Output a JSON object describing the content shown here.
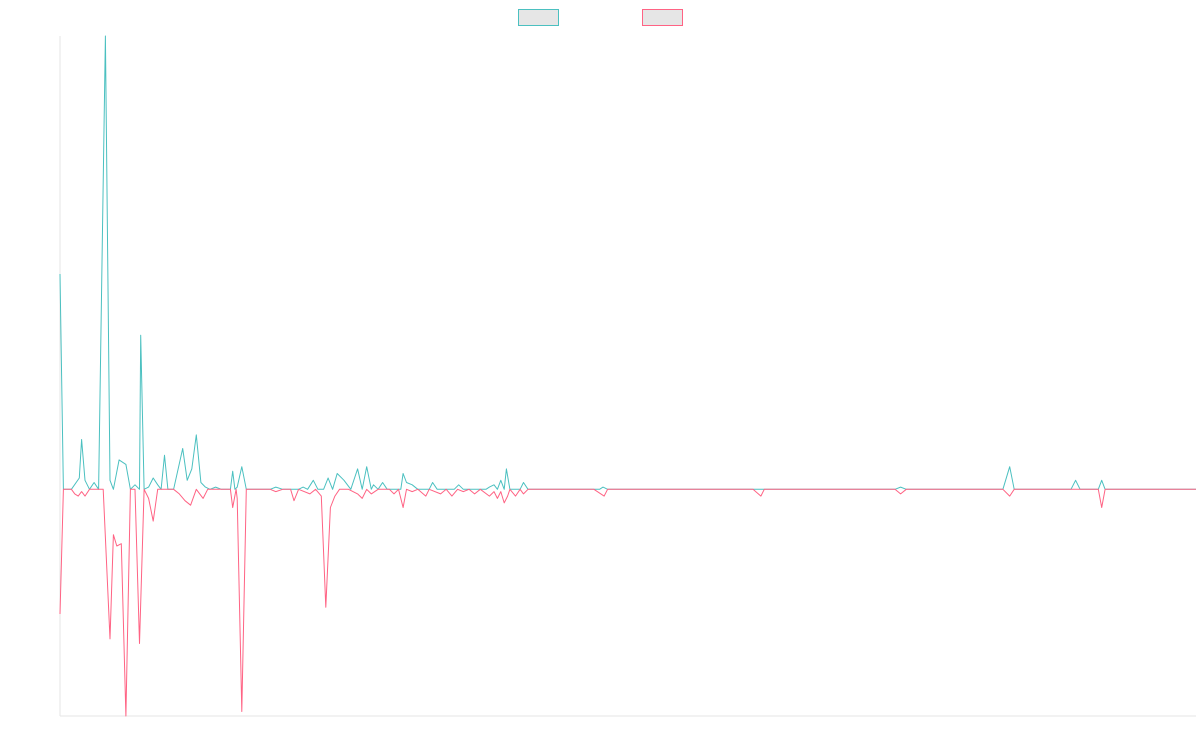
{
  "chart_data": {
    "type": "line",
    "title": "",
    "xlabel": "",
    "ylabel": "",
    "grid": false,
    "legend": "top-center",
    "x_range": [
      0,
      1000
    ],
    "ylim": [
      -100,
      200
    ],
    "series": [
      {
        "color": "#4bc0c0",
        "fill": "#e6e6e6",
        "points": [
          [
            0,
            95
          ],
          [
            3,
            0
          ],
          [
            10,
            0
          ],
          [
            17,
            5
          ],
          [
            19,
            22
          ],
          [
            22,
            4
          ],
          [
            26,
            0
          ],
          [
            30,
            3
          ],
          [
            34,
            0
          ],
          [
            40,
            200
          ],
          [
            44,
            4
          ],
          [
            47,
            0
          ],
          [
            52,
            13
          ],
          [
            58,
            11
          ],
          [
            62,
            0
          ],
          [
            66,
            2
          ],
          [
            70,
            0
          ],
          [
            71,
            68
          ],
          [
            74,
            0
          ],
          [
            78,
            1
          ],
          [
            82,
            5
          ],
          [
            86,
            2
          ],
          [
            89,
            0
          ],
          [
            92,
            15
          ],
          [
            95,
            0
          ],
          [
            100,
            0
          ],
          [
            108,
            18
          ],
          [
            112,
            4
          ],
          [
            116,
            9
          ],
          [
            120,
            24
          ],
          [
            124,
            3
          ],
          [
            128,
            1
          ],
          [
            132,
            0
          ],
          [
            137,
            1
          ],
          [
            142,
            0
          ],
          [
            150,
            0
          ],
          [
            152,
            8
          ],
          [
            154,
            0
          ],
          [
            156,
            1
          ],
          [
            160,
            10
          ],
          [
            164,
            0
          ],
          [
            175,
            0
          ],
          [
            185,
            0
          ],
          [
            190,
            1
          ],
          [
            196,
            0
          ],
          [
            203,
            0
          ],
          [
            210,
            0
          ],
          [
            214,
            1
          ],
          [
            218,
            0
          ],
          [
            223,
            4
          ],
          [
            227,
            0
          ],
          [
            232,
            0
          ],
          [
            236,
            5
          ],
          [
            240,
            0
          ],
          [
            244,
            7
          ],
          [
            250,
            4
          ],
          [
            256,
            0
          ],
          [
            262,
            9
          ],
          [
            266,
            0
          ],
          [
            270,
            10
          ],
          [
            274,
            0
          ],
          [
            276,
            2
          ],
          [
            280,
            0
          ],
          [
            284,
            3
          ],
          [
            288,
            0
          ],
          [
            300,
            0
          ],
          [
            302,
            7
          ],
          [
            305,
            3
          ],
          [
            310,
            2
          ],
          [
            315,
            0
          ],
          [
            325,
            0
          ],
          [
            328,
            3
          ],
          [
            332,
            0
          ],
          [
            340,
            0
          ],
          [
            347,
            0
          ],
          [
            351,
            2
          ],
          [
            355,
            0
          ],
          [
            368,
            0
          ],
          [
            375,
            0
          ],
          [
            378,
            1
          ],
          [
            382,
            2
          ],
          [
            385,
            0
          ],
          [
            388,
            4
          ],
          [
            391,
            0
          ],
          [
            393,
            9
          ],
          [
            396,
            0
          ],
          [
            405,
            0
          ],
          [
            408,
            3
          ],
          [
            412,
            0
          ],
          [
            470,
            0
          ],
          [
            475,
            0
          ],
          [
            478,
            1
          ],
          [
            482,
            0
          ],
          [
            490,
            0
          ],
          [
            500,
            0
          ],
          [
            550,
            0
          ],
          [
            560,
            0
          ],
          [
            600,
            0
          ],
          [
            630,
            0
          ],
          [
            650,
            0
          ],
          [
            700,
            0
          ],
          [
            735,
            0
          ],
          [
            740,
            1
          ],
          [
            745,
            0
          ],
          [
            795,
            0
          ],
          [
            830,
            0
          ],
          [
            836,
            10
          ],
          [
            840,
            0
          ],
          [
            890,
            0
          ],
          [
            894,
            4
          ],
          [
            898,
            0
          ],
          [
            914,
            0
          ],
          [
            917,
            4
          ],
          [
            920,
            0
          ],
          [
            1000,
            0
          ],
          [
            1021,
            0
          ],
          [
            1024,
            10
          ],
          [
            1027,
            0
          ],
          [
            1040,
            0
          ]
        ]
      },
      {
        "color": "#ff6384",
        "fill": "#e6e6e6",
        "points": [
          [
            0,
            -55
          ],
          [
            3,
            0
          ],
          [
            10,
            0
          ],
          [
            13,
            -2
          ],
          [
            16,
            -3
          ],
          [
            19,
            -1
          ],
          [
            22,
            -3
          ],
          [
            26,
            0
          ],
          [
            34,
            0
          ],
          [
            38,
            0
          ],
          [
            44,
            -66
          ],
          [
            47,
            -20
          ],
          [
            50,
            -25
          ],
          [
            54,
            -24
          ],
          [
            58,
            -100
          ],
          [
            62,
            0
          ],
          [
            66,
            0
          ],
          [
            70,
            -68
          ],
          [
            74,
            0
          ],
          [
            78,
            -4
          ],
          [
            82,
            -14
          ],
          [
            86,
            0
          ],
          [
            92,
            0
          ],
          [
            98,
            0
          ],
          [
            100,
            0
          ],
          [
            105,
            -2
          ],
          [
            110,
            -5
          ],
          [
            115,
            -7
          ],
          [
            120,
            0
          ],
          [
            126,
            -4
          ],
          [
            130,
            0
          ],
          [
            140,
            0
          ],
          [
            150,
            0
          ],
          [
            152,
            -8
          ],
          [
            155,
            0
          ],
          [
            156,
            -4
          ],
          [
            160,
            -98
          ],
          [
            164,
            0
          ],
          [
            175,
            0
          ],
          [
            185,
            0
          ],
          [
            190,
            -1
          ],
          [
            196,
            0
          ],
          [
            203,
            0
          ],
          [
            206,
            -5
          ],
          [
            210,
            0
          ],
          [
            220,
            -2
          ],
          [
            225,
            0
          ],
          [
            230,
            -3
          ],
          [
            234,
            -52
          ],
          [
            238,
            -8
          ],
          [
            242,
            -3
          ],
          [
            246,
            0
          ],
          [
            254,
            0
          ],
          [
            262,
            -2
          ],
          [
            266,
            -4
          ],
          [
            270,
            0
          ],
          [
            274,
            -2
          ],
          [
            280,
            0
          ],
          [
            290,
            0
          ],
          [
            294,
            -2
          ],
          [
            298,
            0
          ],
          [
            302,
            -8
          ],
          [
            305,
            0
          ],
          [
            310,
            -1
          ],
          [
            315,
            0
          ],
          [
            322,
            -3
          ],
          [
            325,
            0
          ],
          [
            335,
            -2
          ],
          [
            340,
            0
          ],
          [
            345,
            -3
          ],
          [
            350,
            0
          ],
          [
            355,
            -1
          ],
          [
            360,
            0
          ],
          [
            365,
            -2
          ],
          [
            370,
            0
          ],
          [
            378,
            -3
          ],
          [
            382,
            -1
          ],
          [
            385,
            -4
          ],
          [
            388,
            -1
          ],
          [
            391,
            -6
          ],
          [
            394,
            -3
          ],
          [
            396,
            0
          ],
          [
            401,
            -3
          ],
          [
            405,
            0
          ],
          [
            408,
            -2
          ],
          [
            412,
            0
          ],
          [
            470,
            0
          ],
          [
            479,
            -3
          ],
          [
            482,
            0
          ],
          [
            500,
            0
          ],
          [
            550,
            0
          ],
          [
            560,
            0
          ],
          [
            610,
            0
          ],
          [
            617,
            -3
          ],
          [
            620,
            0
          ],
          [
            735,
            0
          ],
          [
            740,
            -2
          ],
          [
            745,
            0
          ],
          [
            795,
            0
          ],
          [
            830,
            0
          ],
          [
            836,
            -3
          ],
          [
            840,
            0
          ],
          [
            900,
            0
          ],
          [
            914,
            0
          ],
          [
            917,
            -8
          ],
          [
            920,
            0
          ],
          [
            1000,
            0
          ],
          [
            1030,
            0
          ]
        ]
      }
    ]
  }
}
